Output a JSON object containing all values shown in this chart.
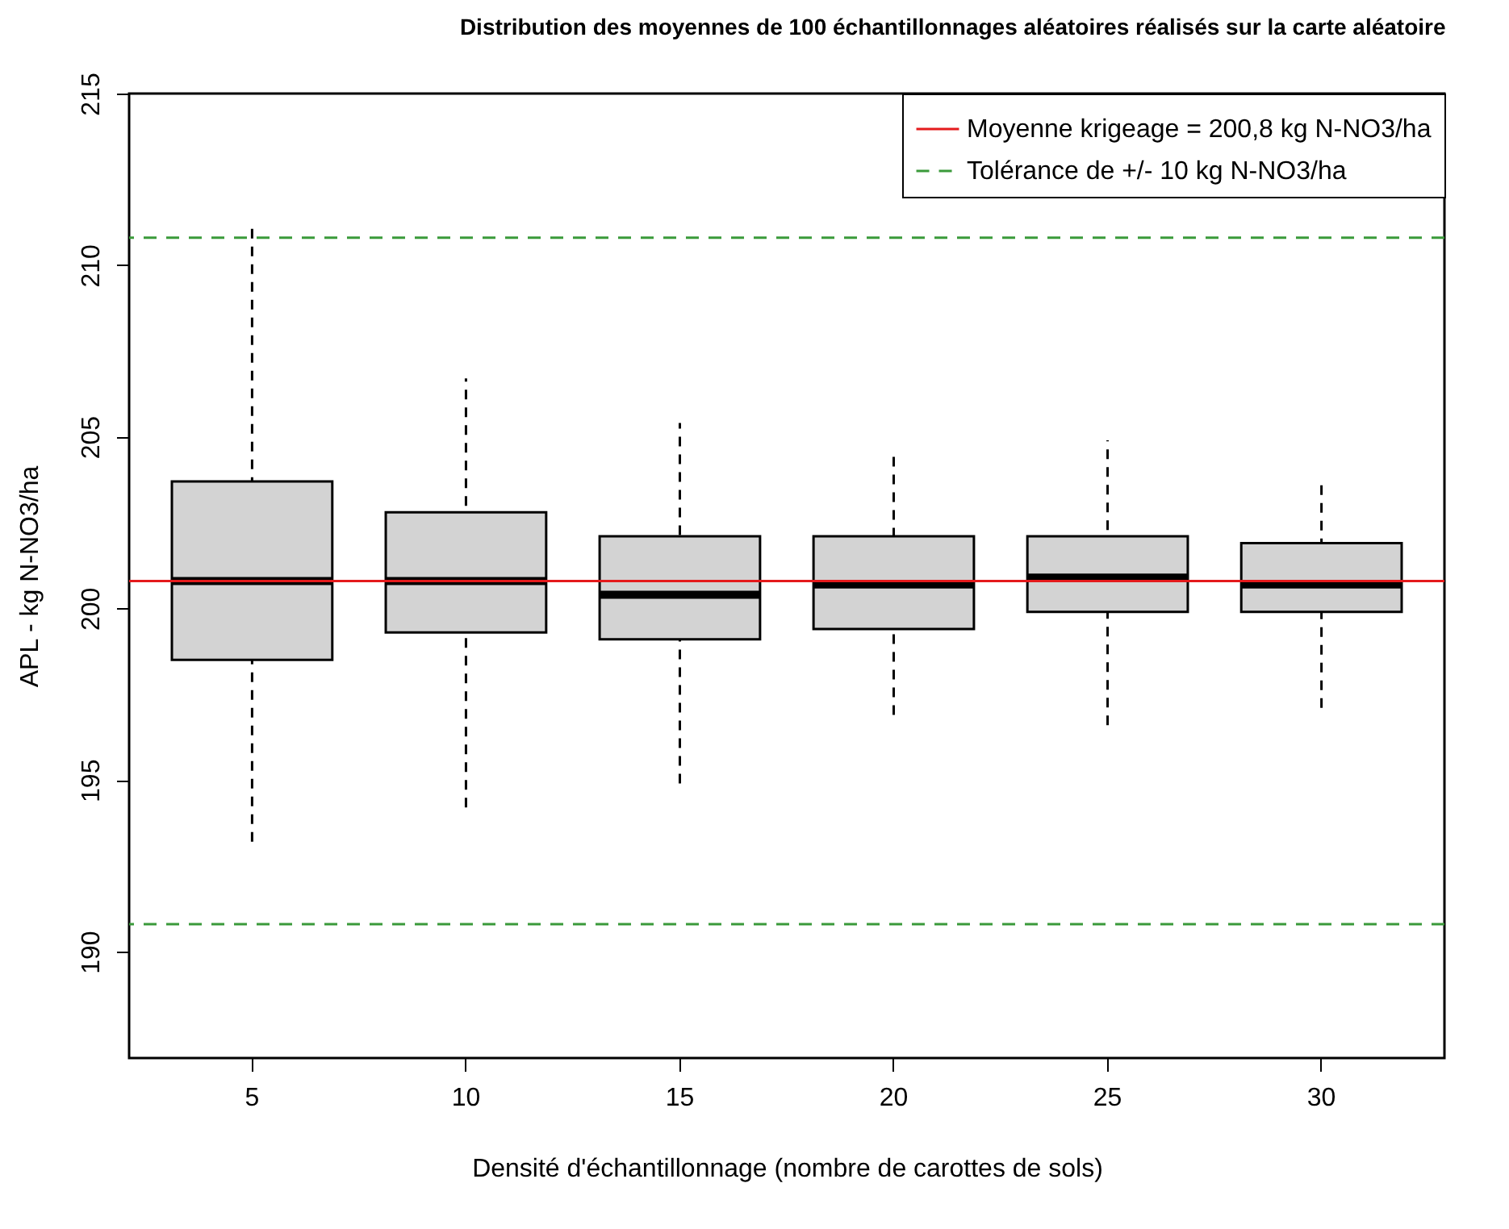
{
  "chart_data": {
    "type": "box",
    "title": "Distribution des moyennes de 100 échantillonnages aléatoires réalisés sur la carte aléatoire",
    "xlabel": "Densité d'échantillonnage (nombre de carottes de sols)",
    "ylabel": "APL - kg N-NO3/ha",
    "categories": [
      "5",
      "10",
      "15",
      "20",
      "25",
      "30"
    ],
    "boxes": [
      {
        "low": 193.2,
        "q1": 198.5,
        "median": 200.8,
        "q3": 203.7,
        "high": 211.2
      },
      {
        "low": 194.2,
        "q1": 199.3,
        "median": 200.8,
        "q3": 202.8,
        "high": 206.7
      },
      {
        "low": 194.9,
        "q1": 199.1,
        "median": 200.4,
        "q3": 202.1,
        "high": 205.4
      },
      {
        "low": 196.9,
        "q1": 199.4,
        "median": 200.7,
        "q3": 202.1,
        "high": 204.6
      },
      {
        "low": 196.6,
        "q1": 199.9,
        "median": 200.9,
        "q3": 202.1,
        "high": 204.9
      },
      {
        "low": 197.1,
        "q1": 199.9,
        "median": 200.7,
        "q3": 201.9,
        "high": 203.8
      }
    ],
    "color": "#d3d3d3",
    "ylim": [
      186.9,
      215.0
    ],
    "yticks": [
      190,
      195,
      200,
      205,
      210,
      215
    ],
    "ref_lines": [
      {
        "axis": "y",
        "value": 200.8,
        "label": "Moyenne krigeage = 200,8 kg N-NO3/ha",
        "color": "#e41a1c",
        "line_style": "solid"
      },
      {
        "axis": "y",
        "value": 210.8,
        "label": "Tolérance de +/- 10 kg N-NO3/ha",
        "color": "#3a9a3a",
        "line_style": "dashed"
      },
      {
        "axis": "y",
        "value": 190.8,
        "color": "#3a9a3a",
        "line_style": "dashed"
      }
    ],
    "grid": false,
    "legend": "top right"
  }
}
